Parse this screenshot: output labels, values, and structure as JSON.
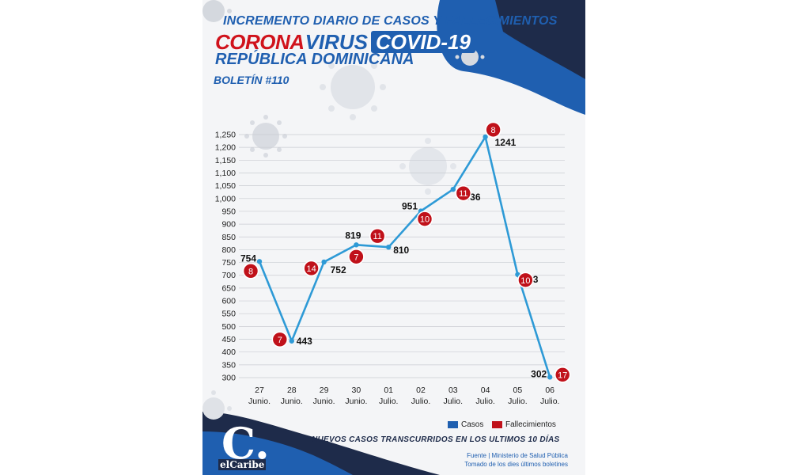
{
  "header": {
    "title_line1": "INCREMENTO DIARIO DE CASOS Y FALLECIMIENTOS",
    "title_corona": "CORONA",
    "title_virus": "VIRUS",
    "title_covid": "COVID-19",
    "title_country": "REPÚBLICA DOMINICANA",
    "bulletin": "BOLETÍN #110"
  },
  "chart_data": {
    "type": "line",
    "title": "INCREMENTO DIARIO DE CASOS Y FALLECIMIENTOS",
    "categories": [
      [
        "27",
        "Junio."
      ],
      [
        "28",
        "Junio."
      ],
      [
        "29",
        "Junio."
      ],
      [
        "30",
        "Junio."
      ],
      [
        "01",
        "Julio."
      ],
      [
        "02",
        "Julio."
      ],
      [
        "03",
        "Julio."
      ],
      [
        "04",
        "Julio."
      ],
      [
        "05",
        "Julio."
      ],
      [
        "06",
        "Julio."
      ]
    ],
    "series": [
      {
        "name": "Casos",
        "values": [
          754,
          443,
          752,
          819,
          810,
          951,
          1036,
          1241,
          703,
          302
        ]
      },
      {
        "name": "Fallecimientos",
        "values": [
          8,
          7,
          14,
          7,
          11,
          10,
          11,
          8,
          10,
          17
        ]
      }
    ],
    "ylim": [
      300,
      1250
    ],
    "yticks": [
      300,
      350,
      400,
      450,
      500,
      550,
      600,
      650,
      700,
      750,
      800,
      850,
      900,
      950,
      1000,
      1050,
      1100,
      1150,
      1200,
      1250
    ],
    "ytick_labels": [
      "300",
      "350",
      "400",
      "450",
      "500",
      "550",
      "600",
      "650",
      "700",
      "750",
      "800",
      "850",
      "900",
      "950",
      "1,000",
      "1,050",
      "1,100",
      "1,150",
      "1,200",
      "1,250"
    ],
    "grid": true,
    "legend_position": "bottom-right",
    "colors": {
      "casos": "#2e9ad6",
      "fallecimientos": "#c0111a",
      "casos_legend": "#1f5fb0"
    }
  },
  "legend": {
    "casos": "Casos",
    "fallecimientos": "Fallecimientos"
  },
  "footer": {
    "note": "NUEVOS CASOS TRANSCURRIDOS EN LOS ULTIMOS 10 DÍAS",
    "source_line1": "Fuente | Ministerio de Salud Pública",
    "source_line2": "Tomado de  los dies últimos boletines"
  },
  "logo": {
    "letter": "C.",
    "word": "elCaribe"
  },
  "colors": {
    "brand_blue": "#1f5fb0",
    "navy": "#1e2b4a",
    "red": "#d0121b"
  }
}
